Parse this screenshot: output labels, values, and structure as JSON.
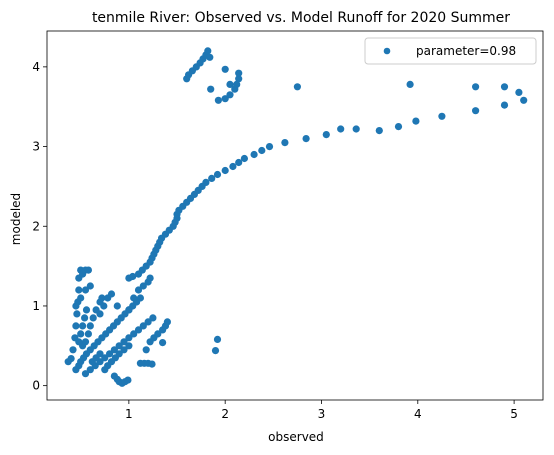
{
  "chart_data": {
    "type": "scatter",
    "title": "tenmile River: Observed vs. Model Runoff for 2020 Summer",
    "xlabel": "observed",
    "ylabel": "modeled",
    "xlim": [
      0.15,
      5.3
    ],
    "ylim": [
      -0.18,
      4.45
    ],
    "xticks": [
      1,
      2,
      3,
      4,
      5
    ],
    "yticks": [
      0,
      1,
      2,
      3,
      4
    ],
    "grid": false,
    "legend_position": "top-right",
    "series": [
      {
        "name": "parameter=0.98",
        "color": "#1f77b4",
        "points": [
          [
            0.37,
            0.3
          ],
          [
            0.4,
            0.34
          ],
          [
            0.42,
            0.45
          ],
          [
            0.44,
            0.6
          ],
          [
            0.45,
            0.75
          ],
          [
            0.46,
            0.9
          ],
          [
            0.47,
            1.05
          ],
          [
            0.48,
            1.2
          ],
          [
            0.48,
            1.35
          ],
          [
            0.5,
            1.45
          ],
          [
            0.52,
            1.4
          ],
          [
            0.55,
            1.45
          ],
          [
            0.58,
            1.45
          ],
          [
            0.45,
            1.0
          ],
          [
            0.5,
            1.1
          ],
          [
            0.55,
            1.2
          ],
          [
            0.6,
            1.25
          ],
          [
            0.52,
            0.5
          ],
          [
            0.55,
            0.55
          ],
          [
            0.58,
            0.65
          ],
          [
            0.6,
            0.75
          ],
          [
            0.63,
            0.85
          ],
          [
            0.66,
            0.95
          ],
          [
            0.7,
            1.05
          ],
          [
            0.72,
            1.1
          ],
          [
            0.45,
            0.2
          ],
          [
            0.48,
            0.25
          ],
          [
            0.5,
            0.3
          ],
          [
            0.53,
            0.35
          ],
          [
            0.56,
            0.4
          ],
          [
            0.6,
            0.45
          ],
          [
            0.64,
            0.5
          ],
          [
            0.68,
            0.55
          ],
          [
            0.72,
            0.6
          ],
          [
            0.76,
            0.65
          ],
          [
            0.8,
            0.7
          ],
          [
            0.84,
            0.75
          ],
          [
            0.88,
            0.8
          ],
          [
            0.92,
            0.85
          ],
          [
            0.96,
            0.9
          ],
          [
            1.0,
            0.95
          ],
          [
            1.04,
            1.0
          ],
          [
            1.08,
            1.05
          ],
          [
            1.12,
            1.1
          ],
          [
            0.55,
            0.15
          ],
          [
            0.6,
            0.2
          ],
          [
            0.65,
            0.25
          ],
          [
            0.7,
            0.3
          ],
          [
            0.75,
            0.35
          ],
          [
            0.8,
            0.4
          ],
          [
            0.85,
            0.45
          ],
          [
            0.9,
            0.5
          ],
          [
            0.95,
            0.55
          ],
          [
            1.0,
            0.6
          ],
          [
            1.05,
            0.65
          ],
          [
            1.1,
            0.7
          ],
          [
            1.15,
            0.75
          ],
          [
            1.2,
            0.8
          ],
          [
            1.25,
            0.85
          ],
          [
            0.48,
            0.55
          ],
          [
            0.5,
            0.65
          ],
          [
            0.52,
            0.75
          ],
          [
            0.54,
            0.85
          ],
          [
            0.56,
            0.95
          ],
          [
            0.62,
            0.3
          ],
          [
            0.66,
            0.35
          ],
          [
            0.7,
            0.4
          ],
          [
            0.75,
            0.2
          ],
          [
            0.78,
            0.25
          ],
          [
            0.82,
            0.3
          ],
          [
            0.86,
            0.35
          ],
          [
            0.9,
            0.4
          ],
          [
            0.95,
            0.45
          ],
          [
            1.0,
            0.5
          ],
          [
            0.7,
            0.9
          ],
          [
            0.74,
            1.0
          ],
          [
            0.78,
            1.1
          ],
          [
            0.82,
            1.15
          ],
          [
            0.88,
            1.0
          ],
          [
            0.85,
            0.12
          ],
          [
            0.88,
            0.08
          ],
          [
            0.9,
            0.05
          ],
          [
            0.93,
            0.03
          ],
          [
            0.96,
            0.05
          ],
          [
            0.99,
            0.07
          ],
          [
            1.0,
            0.95
          ],
          [
            1.05,
            1.1
          ],
          [
            1.1,
            1.2
          ],
          [
            1.15,
            1.25
          ],
          [
            1.2,
            1.3
          ],
          [
            1.22,
            1.35
          ],
          [
            1.18,
            0.45
          ],
          [
            1.22,
            0.55
          ],
          [
            1.26,
            0.6
          ],
          [
            1.3,
            0.65
          ],
          [
            1.35,
            0.7
          ],
          [
            1.38,
            0.75
          ],
          [
            1.4,
            0.8
          ],
          [
            1.12,
            0.28
          ],
          [
            1.16,
            0.28
          ],
          [
            1.2,
            0.28
          ],
          [
            1.24,
            0.27
          ],
          [
            1.35,
            0.54
          ],
          [
            1.0,
            1.35
          ],
          [
            1.04,
            1.37
          ],
          [
            1.1,
            1.4
          ],
          [
            1.14,
            1.45
          ],
          [
            1.18,
            1.5
          ],
          [
            1.22,
            1.55
          ],
          [
            1.24,
            1.6
          ],
          [
            1.26,
            1.65
          ],
          [
            1.28,
            1.7
          ],
          [
            1.3,
            1.75
          ],
          [
            1.32,
            1.8
          ],
          [
            1.34,
            1.85
          ],
          [
            1.38,
            1.9
          ],
          [
            1.42,
            1.95
          ],
          [
            1.46,
            2.0
          ],
          [
            1.48,
            2.05
          ],
          [
            1.5,
            2.1
          ],
          [
            1.5,
            2.15
          ],
          [
            1.52,
            2.2
          ],
          [
            1.56,
            2.25
          ],
          [
            1.6,
            2.3
          ],
          [
            1.64,
            2.35
          ],
          [
            1.68,
            2.4
          ],
          [
            1.72,
            2.45
          ],
          [
            1.76,
            2.5
          ],
          [
            1.8,
            2.55
          ],
          [
            1.86,
            2.6
          ],
          [
            1.92,
            2.65
          ],
          [
            2.0,
            2.7
          ],
          [
            2.08,
            2.75
          ],
          [
            2.14,
            2.8
          ],
          [
            2.2,
            2.85
          ],
          [
            2.3,
            2.9
          ],
          [
            2.38,
            2.95
          ],
          [
            2.46,
            3.0
          ],
          [
            2.62,
            3.05
          ],
          [
            2.84,
            3.1
          ],
          [
            3.05,
            3.15
          ],
          [
            3.2,
            3.22
          ],
          [
            3.36,
            3.22
          ],
          [
            3.6,
            3.2
          ],
          [
            3.8,
            3.25
          ],
          [
            3.98,
            3.32
          ],
          [
            4.25,
            3.38
          ],
          [
            4.6,
            3.45
          ],
          [
            4.9,
            3.52
          ],
          [
            5.1,
            3.58
          ],
          [
            5.05,
            3.68
          ],
          [
            4.9,
            3.75
          ],
          [
            4.6,
            3.75
          ],
          [
            3.92,
            3.78
          ],
          [
            2.75,
            3.75
          ],
          [
            1.6,
            3.85
          ],
          [
            1.62,
            3.9
          ],
          [
            1.66,
            3.95
          ],
          [
            1.7,
            4.0
          ],
          [
            1.74,
            4.05
          ],
          [
            1.77,
            4.1
          ],
          [
            1.8,
            4.15
          ],
          [
            1.82,
            4.2
          ],
          [
            1.84,
            4.12
          ],
          [
            1.85,
            3.72
          ],
          [
            1.93,
            3.58
          ],
          [
            2.0,
            3.6
          ],
          [
            2.05,
            3.65
          ],
          [
            2.1,
            3.72
          ],
          [
            2.12,
            3.78
          ],
          [
            2.14,
            3.85
          ],
          [
            2.14,
            3.92
          ],
          [
            2.05,
            3.78
          ],
          [
            2.0,
            3.97
          ],
          [
            1.92,
            0.58
          ],
          [
            1.9,
            0.44
          ]
        ]
      }
    ]
  }
}
